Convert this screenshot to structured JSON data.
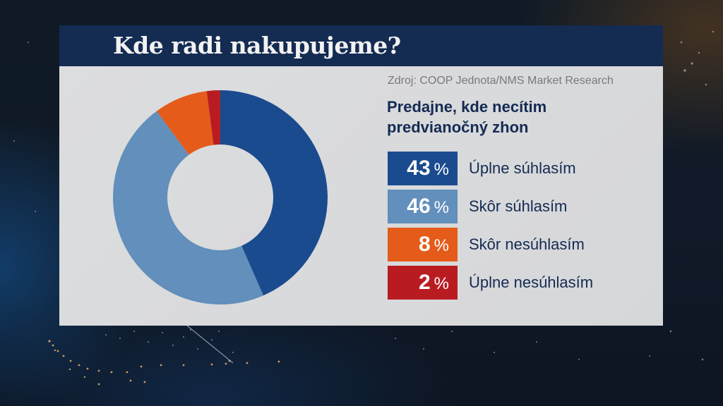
{
  "title": "Kde radi nakupujeme?",
  "source": "Zdroj: COOP Jednota/NMS Market Research",
  "subtitle": "Predajne, kde necítim predvianočný zhon",
  "colors": {
    "title_bar": "#142b52",
    "panel_bg": "#d9dadc",
    "text_dark": "#142b52",
    "source_text": "#7a7a7c"
  },
  "legend": [
    {
      "value": "43",
      "unit": "%",
      "label": "Úplne súhlasím",
      "color": "#1b4b8f"
    },
    {
      "value": "46",
      "unit": "%",
      "label": "Skôr súhlasím",
      "color": "#628fbb"
    },
    {
      "value": "8",
      "unit": "%",
      "label": "Skôr nesúhlasím",
      "color": "#e55b1a"
    },
    {
      "value": "2",
      "unit": "%",
      "label": "Úplne nesúhlasím",
      "color": "#b81c21"
    }
  ],
  "chart_data": {
    "type": "pie",
    "variant": "donut",
    "title": "Kde radi nakupujeme?",
    "subtitle": "Predajne, kde necítim predvianočný zhon",
    "source": "Zdroj: COOP Jednota/NMS Market Research",
    "categories": [
      "Úplne súhlasím",
      "Skôr súhlasím",
      "Skôr nesúhlasím",
      "Úplne nesúhlasím"
    ],
    "values": [
      43,
      46,
      8,
      2
    ],
    "unit": "%",
    "colors": [
      "#1b4b8f",
      "#628fbb",
      "#e55b1a",
      "#b81c21"
    ],
    "start_angle": "12 o'clock, clockwise",
    "legend_position": "right"
  }
}
